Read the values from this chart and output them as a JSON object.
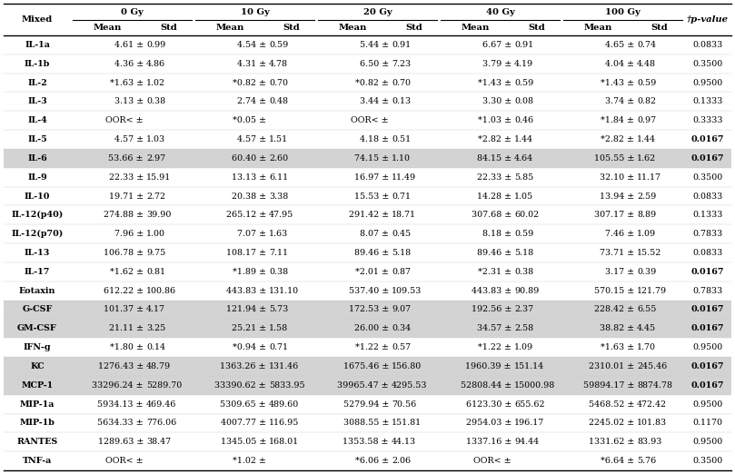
{
  "col_groups": [
    "0 Gy",
    "10 Gy",
    "20 Gy",
    "40 Gy",
    "100 Gy"
  ],
  "last_col": "†p-value",
  "rows": [
    {
      "cytokine": "IL-1a",
      "vals": [
        [
          "4.61 ±",
          "0.99"
        ],
        [
          "4.54 ±",
          "0.59"
        ],
        [
          "5.44 ±",
          "0.91"
        ],
        [
          "6.67 ±",
          "0.91"
        ],
        [
          "4.65 ±",
          "0.74"
        ]
      ],
      "pval": "0.0833",
      "highlight": false,
      "bold_p": false
    },
    {
      "cytokine": "IL-1b",
      "vals": [
        [
          "4.36 ±",
          "4.86"
        ],
        [
          "4.31 ±",
          "4.78"
        ],
        [
          "6.50 ±",
          "7.23"
        ],
        [
          "3.79 ±",
          "4.19"
        ],
        [
          "4.04 ±",
          "4.48"
        ]
      ],
      "pval": "0.3500",
      "highlight": false,
      "bold_p": false
    },
    {
      "cytokine": "IL-2",
      "vals": [
        [
          "*1.63 ±",
          "1.02"
        ],
        [
          "*0.82 ±",
          "0.70"
        ],
        [
          "*0.82 ±",
          "0.70"
        ],
        [
          "*1.43 ±",
          "0.59"
        ],
        [
          "*1.43 ±",
          "0.59"
        ]
      ],
      "pval": "0.9500",
      "highlight": false,
      "bold_p": false
    },
    {
      "cytokine": "IL-3",
      "vals": [
        [
          "3.13 ±",
          "0.38"
        ],
        [
          "2.74 ±",
          "0.48"
        ],
        [
          "3.44 ±",
          "0.13"
        ],
        [
          "3.30 ±",
          "0.08"
        ],
        [
          "3.74 ±",
          "0.82"
        ]
      ],
      "pval": "0.1333",
      "highlight": false,
      "bold_p": false
    },
    {
      "cytokine": "IL-4",
      "vals": [
        [
          "OOR< ±",
          ""
        ],
        [
          "*0.05 ±",
          ""
        ],
        [
          "OOR< ±",
          ""
        ],
        [
          "*1.03 ±",
          "0.46"
        ],
        [
          "*1.84 ±",
          "0.97"
        ]
      ],
      "pval": "0.3333",
      "highlight": false,
      "bold_p": false
    },
    {
      "cytokine": "IL-5",
      "vals": [
        [
          "4.57 ±",
          "1.03"
        ],
        [
          "4.57 ±",
          "1.51"
        ],
        [
          "4.18 ±",
          "0.51"
        ],
        [
          "*2.82 ±",
          "1.44"
        ],
        [
          "*2.82 ±",
          "1.44"
        ]
      ],
      "pval": "0.0167",
      "highlight": false,
      "bold_p": true
    },
    {
      "cytokine": "IL-6",
      "vals": [
        [
          "53.66 ±",
          "2.97"
        ],
        [
          "60.40 ±",
          "2.60"
        ],
        [
          "74.15 ±",
          "1.10"
        ],
        [
          "84.15 ±",
          "4.64"
        ],
        [
          "105.55 ±",
          "1.62"
        ]
      ],
      "pval": "0.0167",
      "highlight": true,
      "bold_p": true
    },
    {
      "cytokine": "IL-9",
      "vals": [
        [
          "22.33 ±",
          "15.91"
        ],
        [
          "13.13 ±",
          "6.11"
        ],
        [
          "16.97 ±",
          "11.49"
        ],
        [
          "22.33 ±",
          "5.85"
        ],
        [
          "32.10 ±",
          "11.17"
        ]
      ],
      "pval": "0.3500",
      "highlight": false,
      "bold_p": false
    },
    {
      "cytokine": "IL-10",
      "vals": [
        [
          "19.71 ±",
          "2.72"
        ],
        [
          "20.38 ±",
          "3.38"
        ],
        [
          "15.53 ±",
          "0.71"
        ],
        [
          "14.28 ±",
          "1.05"
        ],
        [
          "13.94 ±",
          "2.59"
        ]
      ],
      "pval": "0.0833",
      "highlight": false,
      "bold_p": false
    },
    {
      "cytokine": "IL-12(p40)",
      "vals": [
        [
          "274.88 ±",
          "39.90"
        ],
        [
          "265.12 ±",
          "47.95"
        ],
        [
          "291.42 ±",
          "18.71"
        ],
        [
          "307.68 ±",
          "60.02"
        ],
        [
          "307.17 ±",
          "8.89"
        ]
      ],
      "pval": "0.1333",
      "highlight": false,
      "bold_p": false
    },
    {
      "cytokine": "IL-12(p70)",
      "vals": [
        [
          "7.96 ±",
          "1.00"
        ],
        [
          "7.07 ±",
          "1.63"
        ],
        [
          "8.07 ±",
          "0.45"
        ],
        [
          "8.18 ±",
          "0.59"
        ],
        [
          "7.46 ±",
          "1.09"
        ]
      ],
      "pval": "0.7833",
      "highlight": false,
      "bold_p": false
    },
    {
      "cytokine": "IL-13",
      "vals": [
        [
          "106.78 ±",
          "9.75"
        ],
        [
          "108.17 ±",
          "7.11"
        ],
        [
          "89.46 ±",
          "5.18"
        ],
        [
          "89.46 ±",
          "5.18"
        ],
        [
          "73.71 ±",
          "15.52"
        ]
      ],
      "pval": "0.0833",
      "highlight": false,
      "bold_p": false
    },
    {
      "cytokine": "IL-17",
      "vals": [
        [
          "*1.62 ±",
          "0.81"
        ],
        [
          "*1.89 ±",
          "0.38"
        ],
        [
          "*2.01 ±",
          "0.87"
        ],
        [
          "*2.31 ±",
          "0.38"
        ],
        [
          "3.17 ±",
          "0.39"
        ]
      ],
      "pval": "0.0167",
      "highlight": false,
      "bold_p": true
    },
    {
      "cytokine": "Eotaxin",
      "vals": [
        [
          "612.22 ±",
          "100.86"
        ],
        [
          "443.83 ±",
          "131.10"
        ],
        [
          "537.40 ±",
          "109.53"
        ],
        [
          "443.83 ±",
          "90.89"
        ],
        [
          "570.15 ±",
          "121.79"
        ]
      ],
      "pval": "0.7833",
      "highlight": false,
      "bold_p": false
    },
    {
      "cytokine": "G-CSF",
      "vals": [
        [
          "101.37 ±",
          "4.17"
        ],
        [
          "121.94 ±",
          "5.73"
        ],
        [
          "172.53 ±",
          "9.07"
        ],
        [
          "192.56 ±",
          "2.37"
        ],
        [
          "228.42 ±",
          "6.55"
        ]
      ],
      "pval": "0.0167",
      "highlight": true,
      "bold_p": true
    },
    {
      "cytokine": "GM-CSF",
      "vals": [
        [
          "21.11 ±",
          "3.25"
        ],
        [
          "25.21 ±",
          "1.58"
        ],
        [
          "26.00 ±",
          "0.34"
        ],
        [
          "34.57 ±",
          "2.58"
        ],
        [
          "38.82 ±",
          "4.45"
        ]
      ],
      "pval": "0.0167",
      "highlight": true,
      "bold_p": true
    },
    {
      "cytokine": "IFN-g",
      "vals": [
        [
          "*1.80 ±",
          "0.14"
        ],
        [
          "*0.94 ±",
          "0.71"
        ],
        [
          "*1.22 ±",
          "0.57"
        ],
        [
          "*1.22 ±",
          "1.09"
        ],
        [
          "*1.63 ±",
          "1.70"
        ]
      ],
      "pval": "0.9500",
      "highlight": false,
      "bold_p": false
    },
    {
      "cytokine": "KC",
      "vals": [
        [
          "1276.43 ±",
          "48.79"
        ],
        [
          "1363.26 ±",
          "131.46"
        ],
        [
          "1675.46 ±",
          "156.80"
        ],
        [
          "1960.39 ±",
          "151.14"
        ],
        [
          "2310.01 ±",
          "245.46"
        ]
      ],
      "pval": "0.0167",
      "highlight": true,
      "bold_p": true
    },
    {
      "cytokine": "MCP-1",
      "vals": [
        [
          "33296.24 ±",
          "5289.70"
        ],
        [
          "33390.62 ±",
          "5833.95"
        ],
        [
          "39965.47 ±",
          "4295.53"
        ],
        [
          "52808.44 ±",
          "15000.98"
        ],
        [
          "59894.17 ±",
          "8874.78"
        ]
      ],
      "pval": "0.0167",
      "highlight": true,
      "bold_p": true
    },
    {
      "cytokine": "MIP-1a",
      "vals": [
        [
          "5934.13 ±",
          "469.46"
        ],
        [
          "5309.65 ±",
          "489.60"
        ],
        [
          "5279.94 ±",
          "70.56"
        ],
        [
          "6123.30 ±",
          "655.62"
        ],
        [
          "5468.52 ±",
          "472.42"
        ]
      ],
      "pval": "0.9500",
      "highlight": false,
      "bold_p": false
    },
    {
      "cytokine": "MIP-1b",
      "vals": [
        [
          "5634.33 ±",
          "776.06"
        ],
        [
          "4007.77 ±",
          "116.95"
        ],
        [
          "3088.55 ±",
          "151.81"
        ],
        [
          "2954.03 ±",
          "196.17"
        ],
        [
          "2245.02 ±",
          "101.83"
        ]
      ],
      "pval": "0.1170",
      "highlight": false,
      "bold_p": false
    },
    {
      "cytokine": "RANTES",
      "vals": [
        [
          "1289.63 ±",
          "38.47"
        ],
        [
          "1345.05 ±",
          "168.01"
        ],
        [
          "1353.58 ±",
          "44.13"
        ],
        [
          "1337.16 ±",
          "94.44"
        ],
        [
          "1331.62 ±",
          "83.93"
        ]
      ],
      "pval": "0.9500",
      "highlight": false,
      "bold_p": false
    },
    {
      "cytokine": "TNF-a",
      "vals": [
        [
          "OOR< ±",
          ""
        ],
        [
          "*1.02 ±",
          ""
        ],
        [
          "*6.06 ±",
          "2.06"
        ],
        [
          "OOR< ±",
          ""
        ],
        [
          "*6.64 ±",
          "5.76"
        ]
      ],
      "pval": "0.3500",
      "highlight": false,
      "bold_p": false
    }
  ],
  "highlight_color": "#d3d3d3",
  "font_size": 6.8,
  "header_font_size": 7.2
}
